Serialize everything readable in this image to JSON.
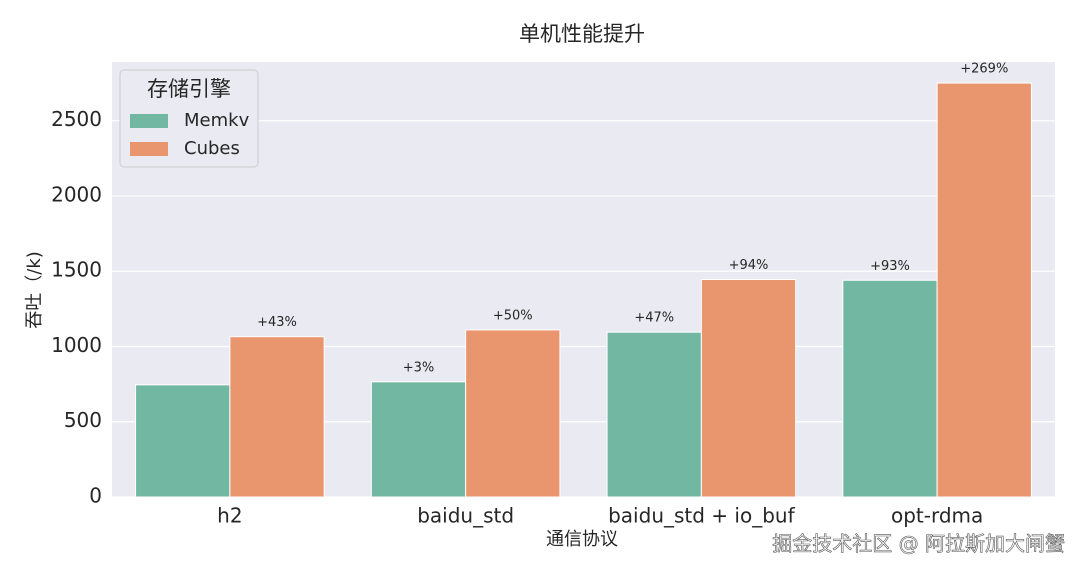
{
  "chart_data": {
    "type": "bar",
    "title": "单机性能提升",
    "x_label": "通信协议",
    "y_label": "吞吐（/k)",
    "categories": [
      "h2",
      "baidu_std",
      "baidu_std + io_buf",
      "opt-rdma"
    ],
    "series": [
      {
        "name": "Memkv",
        "color": "#72b7a1",
        "values": [
          745,
          765,
          1095,
          1440
        ],
        "annotations": [
          null,
          "+3%",
          "+47%",
          "+93%"
        ]
      },
      {
        "name": "Cubes",
        "color": "#e9966f",
        "values": [
          1065,
          1110,
          1445,
          2750
        ],
        "annotations": [
          "+43%",
          "+50%",
          "+94%",
          "+269%"
        ]
      }
    ],
    "ylim": [
      0,
      2890
    ],
    "yticks": [
      0,
      500,
      1000,
      1500,
      2000,
      2500
    ],
    "grid": true,
    "legend_title": "存储引擎",
    "legend_position": "upper left",
    "watermark": "掘金技术社区 @ 阿拉斯加大闸蟹"
  }
}
